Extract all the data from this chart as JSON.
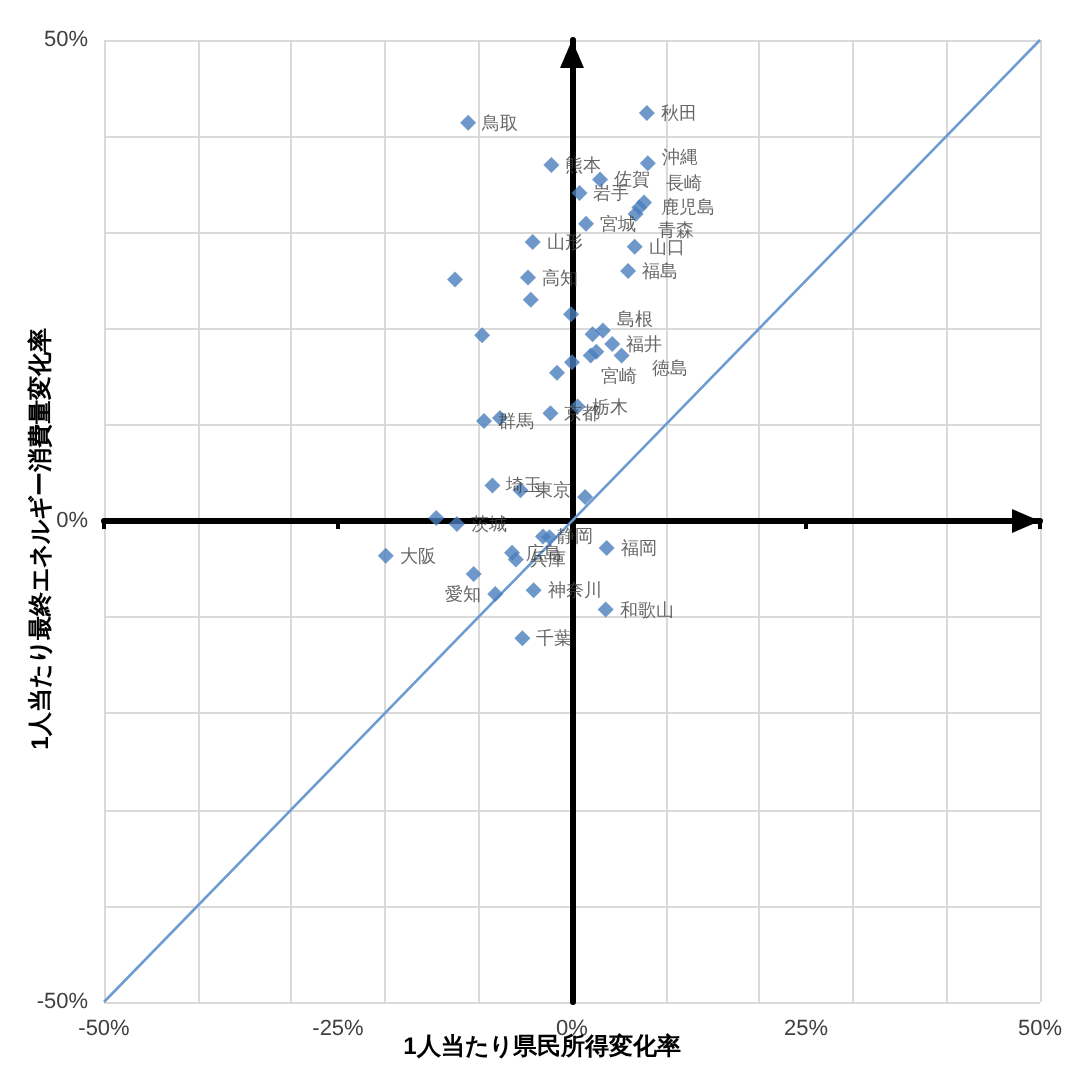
{
  "chart_data": {
    "type": "scatter",
    "xlabel": "1人当たり県民所得変化率",
    "ylabel": "1人当たり最終エネルギー消費量変化率",
    "marker": "diamond",
    "grid": true,
    "xlim": [
      -50,
      50
    ],
    "ylim": [
      -50,
      50
    ],
    "xticks": [
      {
        "value": -50,
        "label": "-50%"
      },
      {
        "value": -40,
        "label": null
      },
      {
        "value": -30,
        "label": null
      },
      {
        "value": -25,
        "label": "-25%"
      },
      {
        "value": -20,
        "label": null
      },
      {
        "value": -10,
        "label": null
      },
      {
        "value": 0,
        "label": "0%"
      },
      {
        "value": 10,
        "label": null
      },
      {
        "value": 20,
        "label": null
      },
      {
        "value": 25,
        "label": "25%"
      },
      {
        "value": 30,
        "label": null
      },
      {
        "value": 40,
        "label": null
      },
      {
        "value": 50,
        "label": "50%"
      }
    ],
    "yticks": [
      {
        "value": -50,
        "label": "-50%"
      },
      {
        "value": -40,
        "label": null
      },
      {
        "value": -30,
        "label": null
      },
      {
        "value": -20,
        "label": null
      },
      {
        "value": -10,
        "label": null
      },
      {
        "value": 0,
        "label": "0%"
      },
      {
        "value": 10,
        "label": null
      },
      {
        "value": 20,
        "label": null
      },
      {
        "value": 30,
        "label": null
      },
      {
        "value": 40,
        "label": null
      },
      {
        "value": 50,
        "label": "50%"
      }
    ],
    "series": [
      {
        "color": "#4a7ebb",
        "x": [
          -11.1,
          8.0,
          -2.2,
          8.1,
          3.0,
          0.8,
          7.7,
          7.2,
          6.8,
          1.5,
          -4.2,
          6.7,
          6.0,
          -12.5,
          -4.7,
          -4.4,
          -0.1,
          -9.6,
          2.2,
          3.3,
          4.3,
          5.3,
          2.0,
          2.6,
          0.0,
          -1.6,
          -9.4,
          -7.7,
          -2.3,
          0.6,
          -8.5,
          -5.5,
          1.4,
          -14.5,
          -12.3,
          -19.9,
          -3.1,
          -2.4,
          -6.4,
          -6.0,
          -10.5,
          -8.2,
          3.7,
          -4.1,
          -5.3,
          3.6
        ],
        "values": [
          41.4,
          42.4,
          37.0,
          37.2,
          35.5,
          34.1,
          33.1,
          32.6,
          31.9,
          30.9,
          29.0,
          28.5,
          26.0,
          25.1,
          25.3,
          23.0,
          21.5,
          19.3,
          19.4,
          19.8,
          18.4,
          17.2,
          17.2,
          17.6,
          16.5,
          15.4,
          10.4,
          10.7,
          11.2,
          11.9,
          3.7,
          3.2,
          2.5,
          0.3,
          -0.3,
          -3.6,
          -1.6,
          -1.7,
          -3.3,
          -4.0,
          -5.5,
          -7.6,
          -2.8,
          -7.2,
          -12.2,
          -9.2
        ]
      },
      {
        "type": "line",
        "marker": "none",
        "color": "#6b9bd2",
        "x": [
          -50,
          50
        ],
        "values": [
          -50,
          50
        ]
      }
    ],
    "annotations": [
      {
        "text": "鳥取",
        "x": -11.1,
        "y": 41.4
      },
      {
        "text": "秋田",
        "x": 8.0,
        "y": 42.4
      },
      {
        "text": "熊本",
        "x": -2.2,
        "y": 37.0
      },
      {
        "text": "沖縄",
        "x": 8.1,
        "y": 37.2
      },
      {
        "text": "佐賀",
        "x": 3.0,
        "y": 35.5
      },
      {
        "text": "岩手",
        "x": 0.8,
        "y": 34.1
      },
      {
        "text": "長崎",
        "x": 7.7,
        "y": 33.1
      },
      {
        "text": "鹿児島",
        "x": 7.2,
        "y": 32.6
      },
      {
        "text": "青森",
        "x": 6.8,
        "y": 31.9
      },
      {
        "text": "宮城",
        "x": 1.5,
        "y": 30.9
      },
      {
        "text": "山形",
        "x": -4.2,
        "y": 29.0
      },
      {
        "text": "山口",
        "x": 6.7,
        "y": 28.5
      },
      {
        "text": "福島",
        "x": 6.0,
        "y": 26.0
      },
      {
        "text": "高知",
        "x": -4.7,
        "y": 25.3
      },
      {
        "text": "島根",
        "x": 3.3,
        "y": 19.8
      },
      {
        "text": "福井",
        "x": 4.3,
        "y": 18.4
      },
      {
        "text": "徳島",
        "x": 5.3,
        "y": 17.2
      },
      {
        "text": "宮崎",
        "x": 2.0,
        "y": 17.2
      },
      {
        "text": "群馬",
        "x": -9.4,
        "y": 10.4
      },
      {
        "text": "京都",
        "x": -2.3,
        "y": 11.2
      },
      {
        "text": "栃木",
        "x": 0.6,
        "y": 11.9
      },
      {
        "text": "埼玉",
        "x": -8.5,
        "y": 3.7
      },
      {
        "text": "東京",
        "x": -5.5,
        "y": 3.2
      },
      {
        "text": "茨城",
        "x": -12.3,
        "y": -0.3
      },
      {
        "text": "大阪",
        "x": -19.9,
        "y": -3.6
      },
      {
        "text": "静岡",
        "x": -3.1,
        "y": -1.6
      },
      {
        "text": "広島",
        "x": -6.4,
        "y": -3.3
      },
      {
        "text": "兵庫",
        "x": -6.0,
        "y": -4.0
      },
      {
        "text": "愛知",
        "x": -8.2,
        "y": -7.6
      },
      {
        "text": "福岡",
        "x": 3.7,
        "y": -2.8
      },
      {
        "text": "神奈川",
        "x": -4.1,
        "y": -7.2
      },
      {
        "text": "千葉",
        "x": -5.3,
        "y": -12.2
      },
      {
        "text": "和歌山",
        "x": 3.6,
        "y": -9.2
      }
    ]
  }
}
